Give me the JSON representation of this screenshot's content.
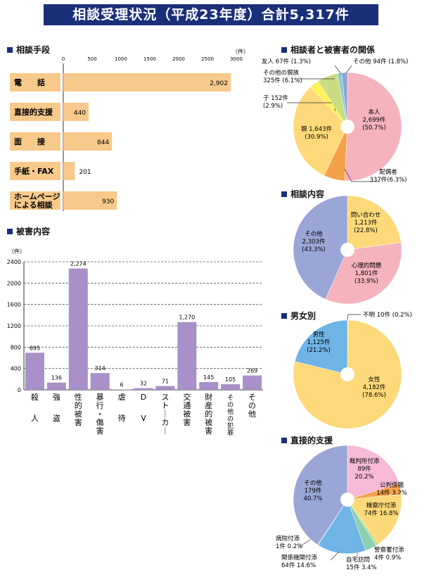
{
  "banner": {
    "title": "相談受理状況（平成23年度）合計5,317件"
  },
  "sections": {
    "methods": "相談手段",
    "damage": "被害内容",
    "relation": "相談者と被害者の関係",
    "content": "相談内容",
    "gender": "男女別",
    "support": "直接的支援"
  },
  "chart_data": [
    {
      "id": "methods",
      "type": "bar",
      "orientation": "horizontal",
      "title": "相談手段",
      "unit": "（件）",
      "xlim": [
        0,
        3000
      ],
      "ticks": [
        "0",
        "500",
        "1000",
        "1500",
        "2000",
        "2500",
        "3000"
      ],
      "categories": [
        "電　　話",
        "直接的支援",
        "面　　接",
        "手紙・FAX",
        "ホームページ|による相談"
      ],
      "values": [
        2902,
        440,
        844,
        201,
        930
      ],
      "labels": [
        "2,902",
        "440",
        "844",
        "201",
        "930"
      ],
      "colors": {
        "bar": "#f7c98a",
        "label_bg": "#f7c98a"
      }
    },
    {
      "id": "damage",
      "type": "bar",
      "title": "被害内容",
      "unit": "（件）",
      "ylim": [
        0,
        2400
      ],
      "yticks": [
        "0",
        "400",
        "800",
        "1200",
        "1600",
        "2000",
        "2400"
      ],
      "categories": [
        "殺人",
        "強盗",
        "性的被害",
        "暴行・傷害",
        "虐待",
        "DV",
        "ストーカー",
        "交通被害",
        "財産的被害",
        "その他の犯罪",
        "その他"
      ],
      "values": [
        695,
        136,
        2274,
        314,
        6,
        32,
        71,
        1270,
        145,
        105,
        269
      ],
      "labels": [
        "695",
        "136",
        "2,274",
        "314",
        "6",
        "32",
        "71",
        "1,270",
        "145",
        "105",
        "269"
      ],
      "colors": {
        "bar": "#a990c8"
      }
    },
    {
      "id": "relation",
      "type": "pie",
      "title": "相談者と被害者の関係",
      "slices": [
        {
          "name": "本人",
          "value": 2699,
          "label": "本人|2,699件|(50.7%)",
          "color": "#f4b3bd"
        },
        {
          "name": "配偶者",
          "value": 337,
          "label": "配偶者|337件(6.3%)",
          "color": "#f4a24a"
        },
        {
          "name": "親",
          "value": 1643,
          "label": "親 1,643件|(30.9%)",
          "color": "#fdd97a"
        },
        {
          "name": "子",
          "value": 152,
          "label": "子 152件|(2.9%)",
          "color": "#fff25a"
        },
        {
          "name": "その他の親族",
          "value": 325,
          "label": "その他の親族|325件 (6.1%)",
          "color": "#c9dc82"
        },
        {
          "name": "友人",
          "value": 67,
          "label": "友人 67件 (1.3%)",
          "color": "#8bc9c8"
        },
        {
          "name": "その他",
          "value": 94,
          "label": "その他 94件 (1.8%)",
          "color": "#8fa4d8"
        }
      ]
    },
    {
      "id": "content",
      "type": "pie",
      "title": "相談内容",
      "slices": [
        {
          "name": "問い合わせ",
          "value": 1213,
          "label": "問い合わせ|1,213件|(22.8%)",
          "color": "#fdd97a"
        },
        {
          "name": "心理的問題",
          "value": 1801,
          "label": "心理的問題|1,801件|(33.9%)",
          "color": "#f4b3bd"
        },
        {
          "name": "その他",
          "value": 2303,
          "label": "その他|2,303件|(43.3%)",
          "color": "#9aa6d6"
        }
      ]
    },
    {
      "id": "gender",
      "type": "pie",
      "title": "男女別",
      "slices": [
        {
          "name": "不明",
          "value": 10,
          "label": "不明 10件 (0.2%)",
          "color": "#f4b3bd"
        },
        {
          "name": "女性",
          "value": 4182,
          "label": "女性|4,182件|(78.6%)",
          "color": "#fdd97a"
        },
        {
          "name": "男性",
          "value": 1125,
          "label": "男性|1,125件|(21.2%)",
          "color": "#6fb4e6"
        }
      ]
    },
    {
      "id": "support",
      "type": "pie",
      "title": "直接的支援",
      "slices": [
        {
          "name": "裁判所付添",
          "value": 89,
          "label": "裁判所付添|89件|20.2%",
          "color": "#f6b9d6"
        },
        {
          "name": "公判傍聴",
          "value": 14,
          "label": "公判傍聴|14件 3.2%",
          "color": "#f4a24a"
        },
        {
          "name": "検察庁付添",
          "value": 74,
          "label": "検察庁付添|74件 16.8%",
          "color": "#fdd97a"
        },
        {
          "name": "警察署付添",
          "value": 4,
          "label": "警察署付添|4件 0.9%",
          "color": "#c9dc82"
        },
        {
          "name": "自宅訪問",
          "value": 15,
          "label": "自宅訪問|15件 3.4%",
          "color": "#8ccfb0"
        },
        {
          "name": "関係機関付添",
          "value": 64,
          "label": "関係機関付添|64件 14.6%",
          "color": "#6fb4e6"
        },
        {
          "name": "病院付添",
          "value": 1,
          "label": "病院付添|1件 0.2%",
          "color": "#7ec7cf"
        },
        {
          "name": "その他",
          "value": 179,
          "label": "その他|179件|40.7%",
          "color": "#9aa6d6"
        }
      ]
    }
  ]
}
